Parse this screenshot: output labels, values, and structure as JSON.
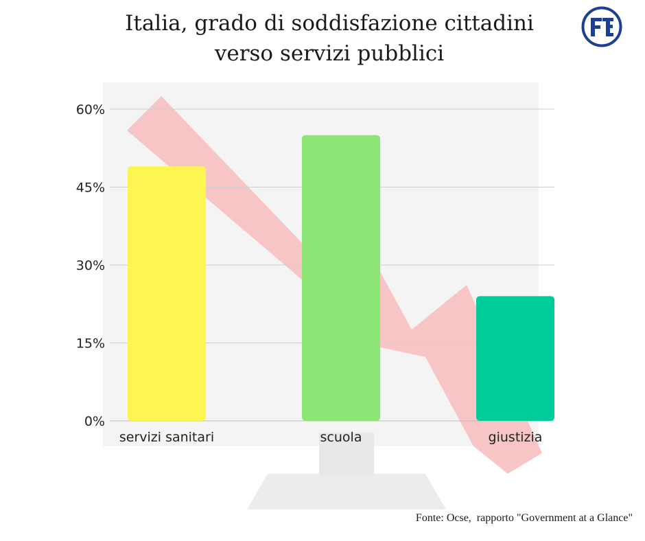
{
  "title_line1": "Italia, grado di soddisfazione cittadini",
  "title_line2": "verso servizi pubblici",
  "logo_text": "FE",
  "source": "Fonte: Ocse,  rapporto \"Government at a Glance\"",
  "colors": {
    "servizi sanitari": "#fef650",
    "scuola": "#8de575",
    "giustizia": "#00cb9b",
    "grid": "#cfcfcf",
    "logo": "#1d3f8f"
  },
  "chart_data": {
    "type": "bar",
    "categories": [
      "servizi sanitari",
      "scuola",
      "giustizia"
    ],
    "values": [
      49,
      55,
      24
    ],
    "yticks": [
      "0%",
      "15%",
      "30%",
      "45%",
      "60%"
    ],
    "ylim": [
      0,
      60
    ],
    "grid": true,
    "xlabel": "",
    "ylabel": ""
  }
}
